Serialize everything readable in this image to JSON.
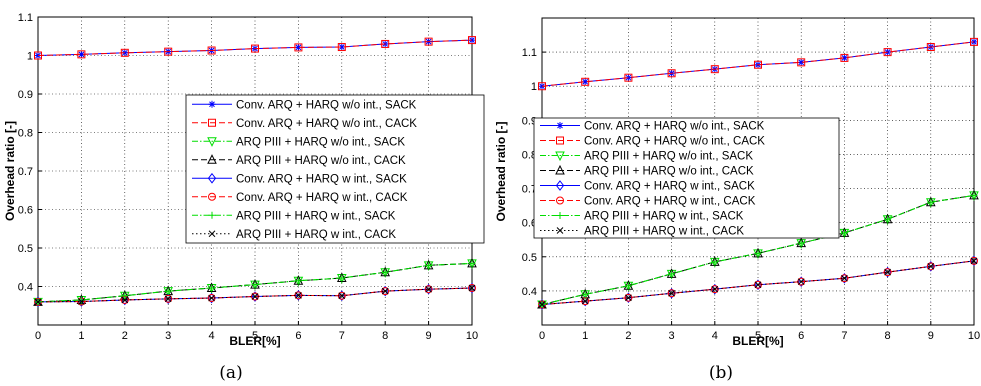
{
  "chart_data": [
    {
      "type": "line",
      "caption": "(a)",
      "xlabel": "BLER[%]",
      "ylabel": "Overhead ratio [-]",
      "xlim": [
        0,
        10
      ],
      "ylim": [
        0.3,
        1.1
      ],
      "xticks": [
        0,
        1,
        2,
        3,
        4,
        5,
        6,
        7,
        8,
        9,
        10
      ],
      "yticks": [
        0.4,
        0.5,
        0.6,
        0.7,
        0.8,
        0.9,
        1,
        1.1
      ],
      "grid": true,
      "legend_position": "center-right",
      "x": [
        0,
        1,
        2,
        3,
        4,
        5,
        6,
        7,
        8,
        9,
        10
      ],
      "series": [
        {
          "name": "Conv. ARQ + HARQ w/o int., SACK",
          "color": "#0000ff",
          "marker": "star",
          "dash": "solid",
          "values": [
            1.0,
            1.003,
            1.007,
            1.01,
            1.013,
            1.018,
            1.021,
            1.022,
            1.03,
            1.036,
            1.04
          ]
        },
        {
          "name": "Conv. ARQ + HARQ w/o int., CACK",
          "color": "#ff0000",
          "marker": "square",
          "dash": "dashed",
          "values": [
            1.0,
            1.003,
            1.007,
            1.01,
            1.013,
            1.018,
            1.021,
            1.022,
            1.03,
            1.036,
            1.04
          ]
        },
        {
          "name": "ARQ PIII + HARQ w/o int., SACK",
          "color": "#00dd00",
          "marker": "triangle-down",
          "dash": "dashdot",
          "values": [
            0.36,
            0.365,
            0.376,
            0.388,
            0.396,
            0.405,
            0.415,
            0.422,
            0.437,
            0.455,
            0.46
          ]
        },
        {
          "name": "ARQ PIII + HARQ w/o int., CACK",
          "color": "#000000",
          "marker": "triangle-up",
          "dash": "dashed",
          "values": [
            0.36,
            0.365,
            0.376,
            0.388,
            0.396,
            0.405,
            0.415,
            0.422,
            0.437,
            0.455,
            0.46
          ]
        },
        {
          "name": "Conv. ARQ + HARQ w int., SACK",
          "color": "#0000ff",
          "marker": "diamond",
          "dash": "solid",
          "values": [
            0.36,
            0.361,
            0.365,
            0.368,
            0.37,
            0.374,
            0.377,
            0.376,
            0.388,
            0.393,
            0.396
          ]
        },
        {
          "name": "Conv. ARQ + HARQ w int., CACK",
          "color": "#ff0000",
          "marker": "circle",
          "dash": "dashed",
          "values": [
            0.36,
            0.361,
            0.365,
            0.368,
            0.37,
            0.374,
            0.377,
            0.376,
            0.388,
            0.393,
            0.396
          ]
        },
        {
          "name": "ARQ PIII + HARQ w int., SACK",
          "color": "#00dd00",
          "marker": "plus",
          "dash": "dashdot",
          "values": [
            0.36,
            0.365,
            0.376,
            0.388,
            0.396,
            0.405,
            0.415,
            0.422,
            0.437,
            0.455,
            0.46
          ]
        },
        {
          "name": "ARQ PIII + HARQ w int., CACK",
          "color": "#000000",
          "marker": "x",
          "dash": "dotted",
          "values": [
            0.36,
            0.361,
            0.365,
            0.368,
            0.37,
            0.374,
            0.377,
            0.376,
            0.388,
            0.393,
            0.396
          ]
        }
      ]
    },
    {
      "type": "line",
      "caption": "(b)",
      "xlabel": "BLER[%]",
      "ylabel": "Overhead ratio [-]",
      "xlim": [
        0,
        10
      ],
      "ylim": [
        0.3,
        1.2
      ],
      "xticks": [
        0,
        1,
        2,
        3,
        4,
        5,
        6,
        7,
        8,
        9,
        10
      ],
      "yticks": [
        0.4,
        0.5,
        0.6,
        0.7,
        0.8,
        0.9,
        1,
        1.1
      ],
      "grid": true,
      "legend_position": "center-right",
      "x": [
        0,
        1,
        2,
        3,
        4,
        5,
        6,
        7,
        8,
        9,
        10
      ],
      "series": [
        {
          "name": "Conv. ARQ + HARQ w/o int., SACK",
          "color": "#0000ff",
          "marker": "star",
          "dash": "solid",
          "values": [
            1.0,
            1.013,
            1.025,
            1.038,
            1.05,
            1.063,
            1.07,
            1.083,
            1.1,
            1.115,
            1.13
          ]
        },
        {
          "name": "Conv. ARQ + HARQ w/o int., CACK",
          "color": "#ff0000",
          "marker": "square",
          "dash": "dashed",
          "values": [
            1.0,
            1.013,
            1.025,
            1.038,
            1.05,
            1.063,
            1.07,
            1.083,
            1.1,
            1.115,
            1.13
          ]
        },
        {
          "name": "ARQ PIII + HARQ w/o int., SACK",
          "color": "#00dd00",
          "marker": "triangle-down",
          "dash": "dashdot",
          "values": [
            0.36,
            0.39,
            0.415,
            0.45,
            0.485,
            0.51,
            0.54,
            0.57,
            0.61,
            0.66,
            0.68
          ]
        },
        {
          "name": "ARQ PIII + HARQ w/o int., CACK",
          "color": "#000000",
          "marker": "triangle-up",
          "dash": "dashed",
          "values": [
            0.36,
            0.39,
            0.415,
            0.45,
            0.485,
            0.51,
            0.54,
            0.57,
            0.61,
            0.66,
            0.68
          ]
        },
        {
          "name": "Conv. ARQ + HARQ w int., SACK",
          "color": "#0000ff",
          "marker": "diamond",
          "dash": "solid",
          "values": [
            0.36,
            0.37,
            0.38,
            0.393,
            0.405,
            0.418,
            0.427,
            0.437,
            0.455,
            0.472,
            0.488
          ]
        },
        {
          "name": "Conv. ARQ + HARQ w int., CACK",
          "color": "#ff0000",
          "marker": "circle",
          "dash": "dashed",
          "values": [
            0.36,
            0.37,
            0.38,
            0.393,
            0.405,
            0.418,
            0.427,
            0.437,
            0.455,
            0.472,
            0.488
          ]
        },
        {
          "name": "ARQ PIII + HARQ w int., SACK",
          "color": "#00dd00",
          "marker": "plus",
          "dash": "dashdot",
          "values": [
            0.36,
            0.39,
            0.415,
            0.45,
            0.485,
            0.51,
            0.54,
            0.57,
            0.61,
            0.66,
            0.68
          ]
        },
        {
          "name": "ARQ PIII + HARQ w int., CACK",
          "color": "#000000",
          "marker": "x",
          "dash": "dotted",
          "values": [
            0.36,
            0.37,
            0.38,
            0.393,
            0.405,
            0.418,
            0.427,
            0.437,
            0.455,
            0.472,
            0.488
          ]
        }
      ]
    }
  ]
}
